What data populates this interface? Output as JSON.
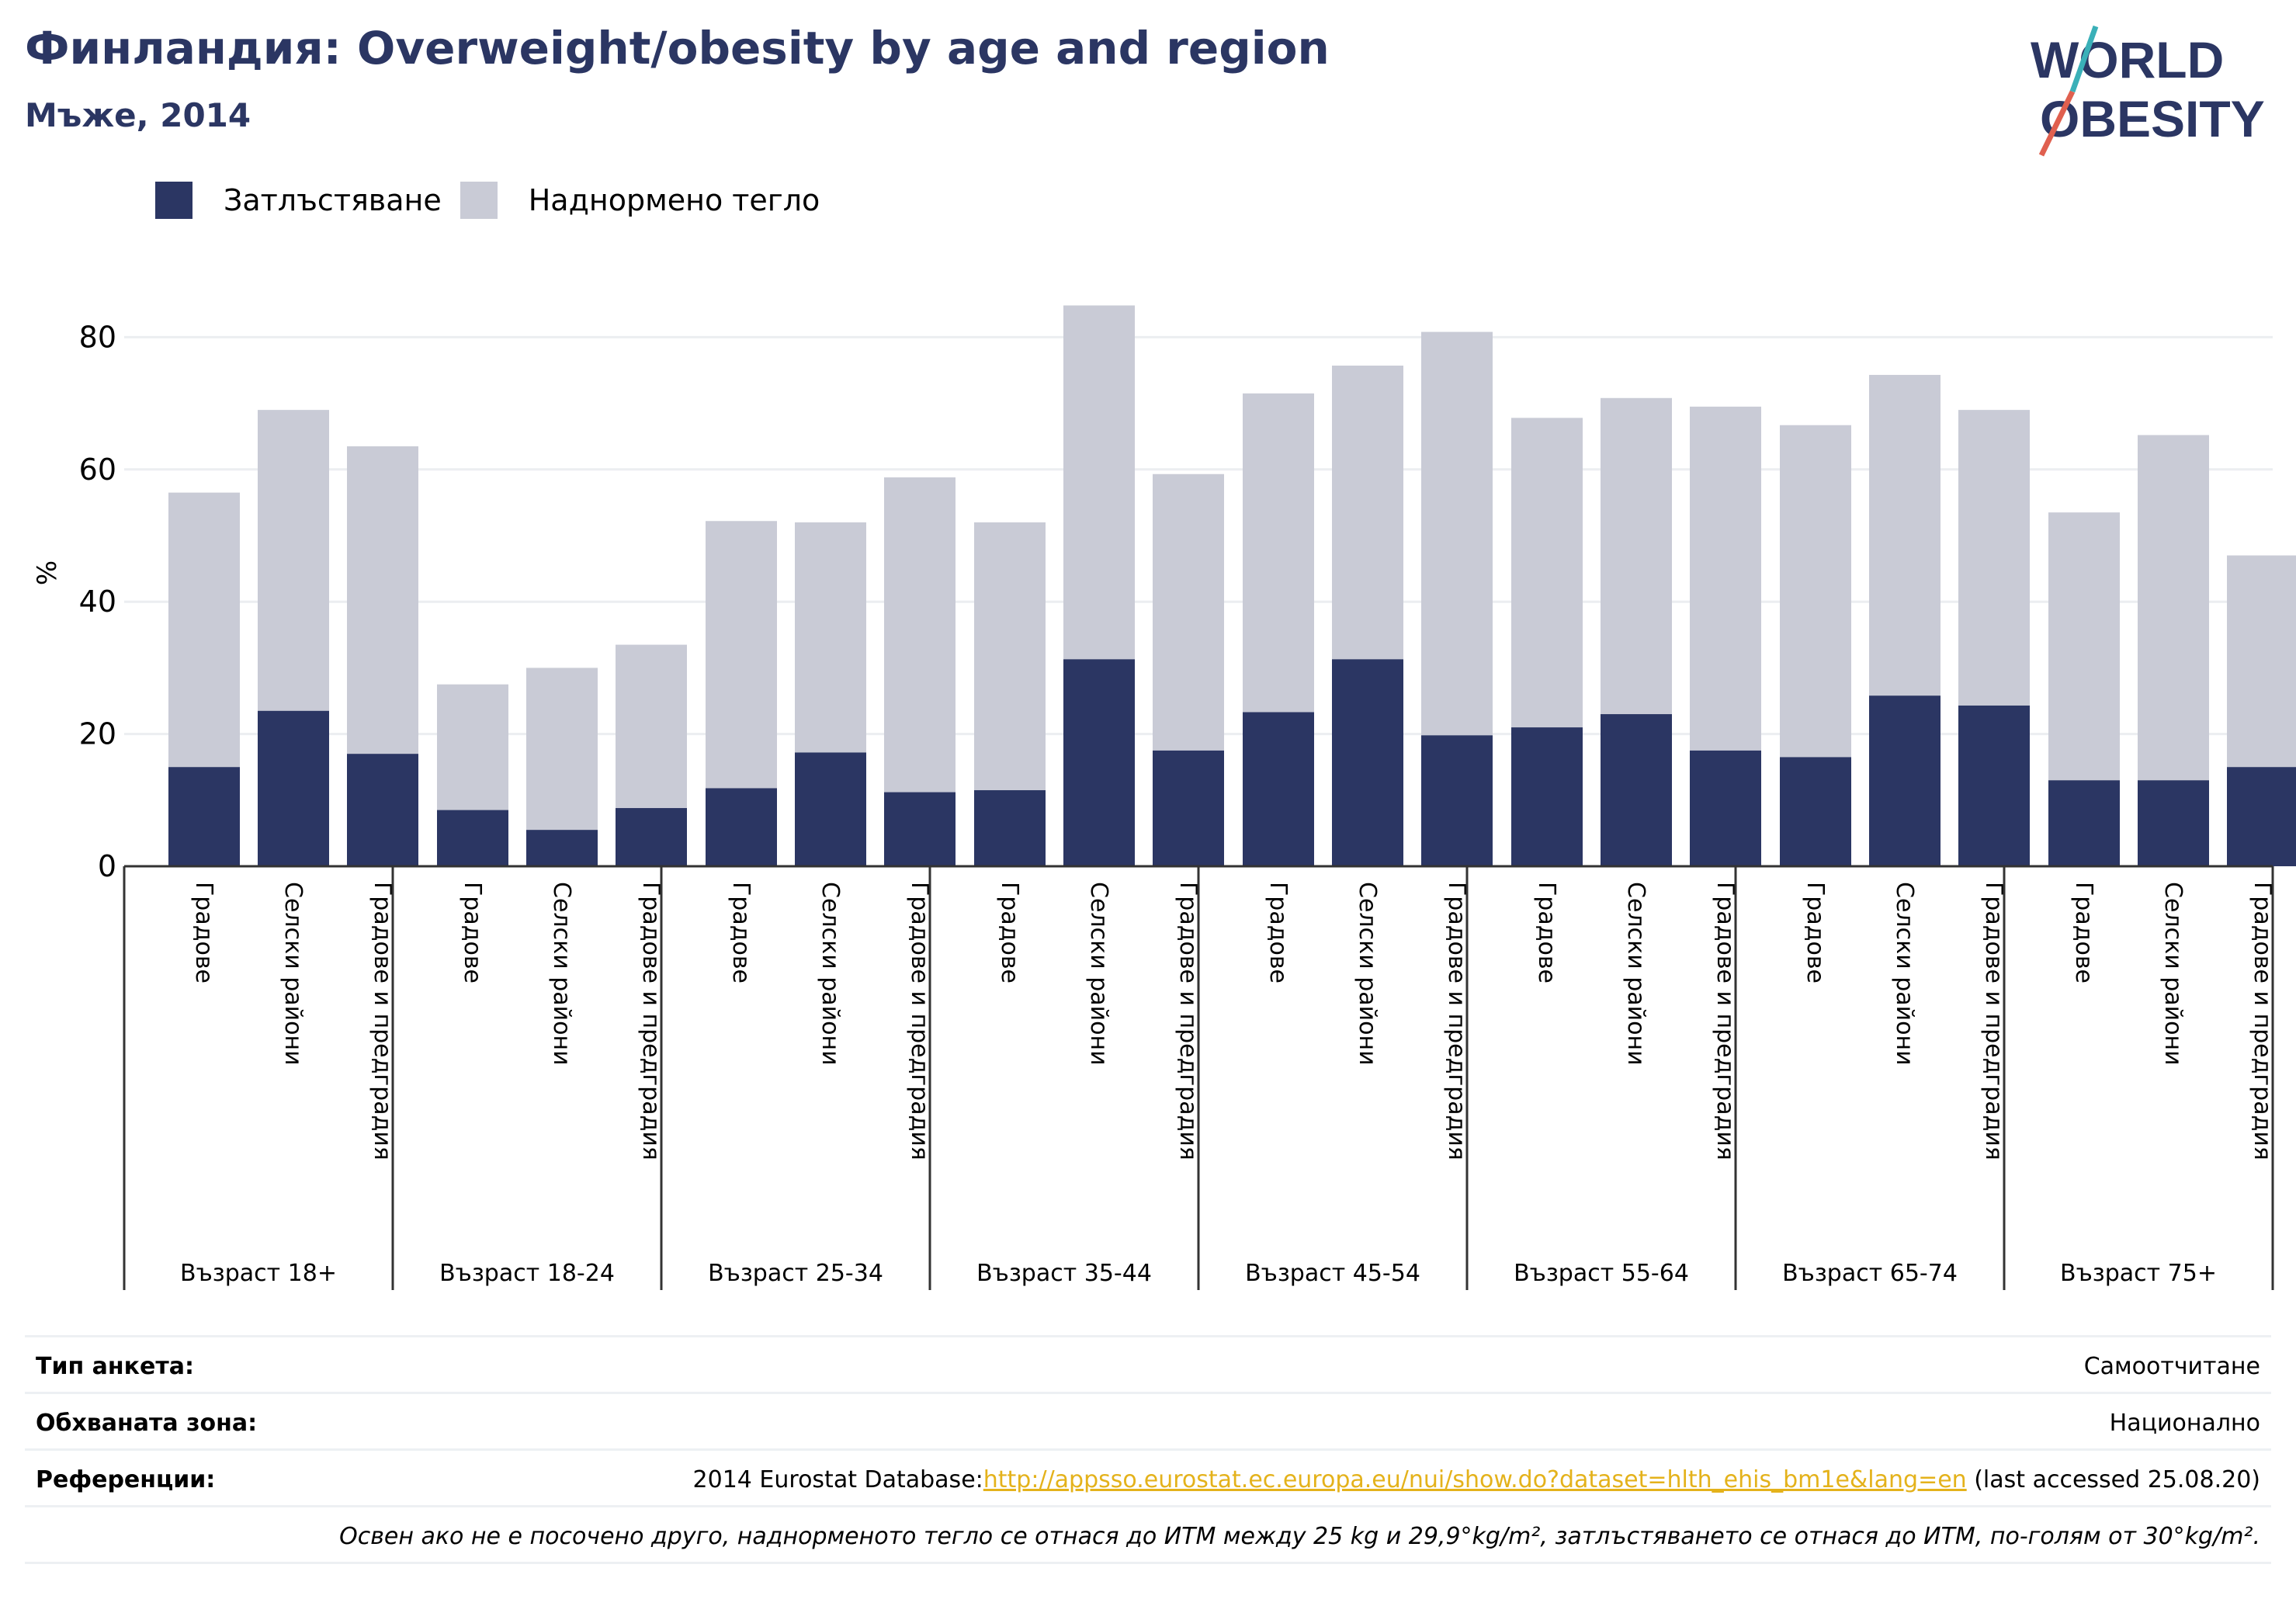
{
  "header": {
    "title": "Финландия: Overweight/obesity by age and region",
    "subtitle": "Мъже, 2014"
  },
  "logo": {
    "line1": "WORLD",
    "line2": "OBESITY"
  },
  "colors": {
    "obesity": "#2b3663",
    "overweight": "#c9cbd6",
    "title": "#2b3663",
    "link": "#e4b21b",
    "logo_red": "#e0604f",
    "logo_teal": "#3ab0b8"
  },
  "legend": {
    "items": [
      {
        "label": "Затлъстяване",
        "color": "#2b3663"
      },
      {
        "label": "Наднормено тегло",
        "color": "#c9cbd6"
      }
    ]
  },
  "chart_data": {
    "type": "bar",
    "stacked": true,
    "ylabel": "%",
    "ylim": [
      0,
      90
    ],
    "yticks": [
      0,
      20,
      40,
      60,
      80
    ],
    "grid": true,
    "legend_position": "top-left",
    "groups": [
      {
        "label": "Възраст 18+",
        "categories": [
          "Градове",
          "Селски райони",
          "Градове и предградия"
        ],
        "obesity": [
          15,
          23.5,
          17
        ],
        "total": [
          56.5,
          69,
          63.5
        ]
      },
      {
        "label": "Възраст 18-24",
        "categories": [
          "Градове",
          "Селски райони",
          "Градове и предградия"
        ],
        "obesity": [
          8.5,
          5.5,
          8.8
        ],
        "total": [
          27.5,
          30,
          33.5
        ]
      },
      {
        "label": "Възраст 25-34",
        "categories": [
          "Градове",
          "Селски райони",
          "Градове и предградия"
        ],
        "obesity": [
          11.8,
          17.2,
          11.2
        ],
        "total": [
          52.2,
          52,
          58.8
        ]
      },
      {
        "label": "Възраст 35-44",
        "categories": [
          "Градове",
          "Селски райони",
          "Градове и предградия"
        ],
        "obesity": [
          11.5,
          31.3,
          17.5
        ],
        "total": [
          52,
          84.8,
          59.3
        ]
      },
      {
        "label": "Възраст 45-54",
        "categories": [
          "Градове",
          "Селски райони",
          "Градове и предградия"
        ],
        "obesity": [
          23.3,
          31.3,
          19.8
        ],
        "total": [
          71.5,
          75.7,
          80.8
        ]
      },
      {
        "label": "Възраст 55-64",
        "categories": [
          "Градове",
          "Селски райони",
          "Градове и предградия"
        ],
        "obesity": [
          21,
          23,
          17.5
        ],
        "total": [
          67.8,
          70.8,
          69.5
        ]
      },
      {
        "label": "Възраст 65-74",
        "categories": [
          "Градове",
          "Селски райони",
          "Градове и предградия"
        ],
        "obesity": [
          16.5,
          25.8,
          24.3
        ],
        "total": [
          66.7,
          74.3,
          69
        ]
      },
      {
        "label": "Възраст 75+",
        "categories": [
          "Градове",
          "Селски райони",
          "Градове и предградия"
        ],
        "obesity": [
          13,
          13,
          15
        ],
        "total": [
          53.5,
          65.2,
          47
        ]
      }
    ]
  },
  "info": {
    "survey_type_label": "Тип анкета:",
    "survey_type_value": "Самоотчитане",
    "coverage_label": "Обхваната зона:",
    "coverage_value": "Национално",
    "references_label": "Референции:",
    "references_prefix": "2014 Eurostat Database:",
    "references_link": "http://appsso.eurostat.ec.europa.eu/nui/show.do?dataset=hlth_ehis_bm1e&lang=en",
    "references_suffix": " (last accessed 25.08.20)",
    "note": "Освен ако не е посочено друго, наднорменото тегло се отнася до ИТМ между 25 kg и 29,9°kg/m², затлъстяването се отнася до ИТМ, по-голям от 30°kg/m²."
  }
}
